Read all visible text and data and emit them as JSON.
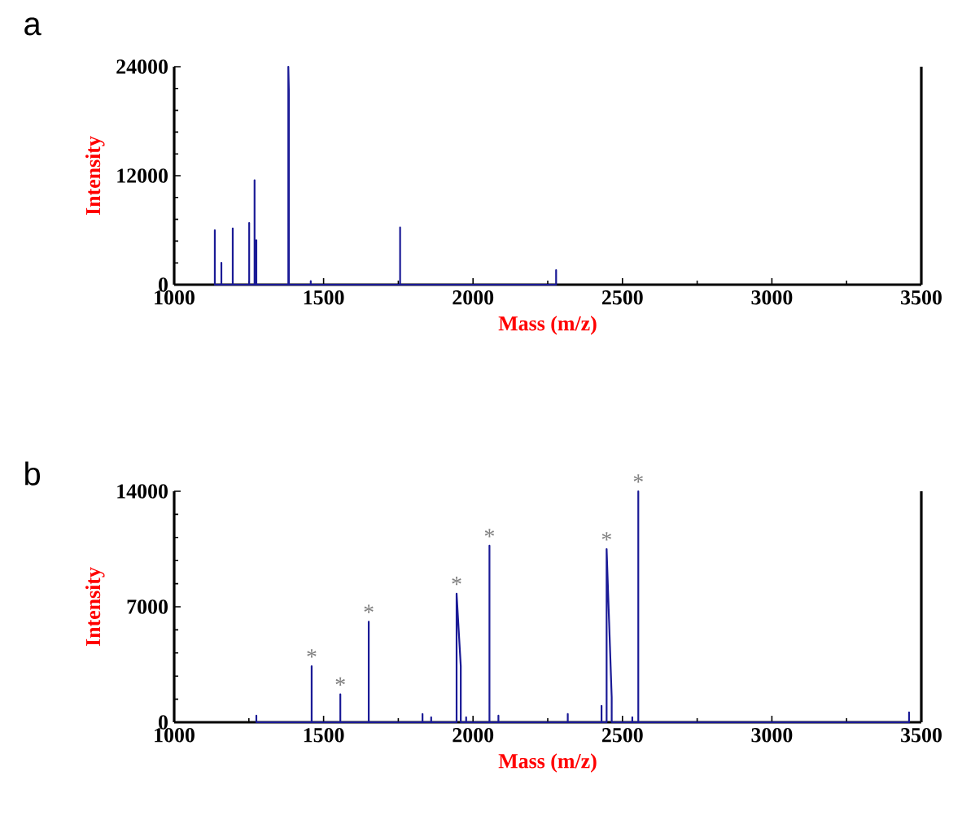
{
  "chart_data": [
    {
      "type": "line",
      "title": "a",
      "xlabel": "Mass (m/z)",
      "ylabel": "Intensity",
      "xlim": [
        1000,
        3500
      ],
      "ylim": [
        0,
        24000
      ],
      "xticks": [
        1000,
        1500,
        2000,
        2500,
        3000,
        3500
      ],
      "yticks": [
        0,
        12000,
        24000
      ],
      "series": [
        {
          "color": "#1a1a96",
          "x": [
            1136,
            1136,
            1136,
            1158,
            1158,
            1158,
            1196,
            1196,
            1196,
            1251,
            1251,
            1251,
            1269,
            1269,
            1269,
            1275,
            1275,
            1275,
            1382,
            1382,
            1384,
            1384,
            1457,
            1457,
            1457,
            1756,
            1756,
            1756,
            2278,
            2278,
            2278
          ],
          "values": [
            0,
            6000,
            0,
            0,
            2400,
            0,
            0,
            6200,
            0,
            0,
            6800,
            0,
            0,
            11500,
            0,
            0,
            4900,
            0,
            0,
            24000,
            21000,
            0,
            0,
            400,
            0,
            0,
            6300,
            0,
            0,
            1600,
            0
          ]
        }
      ]
    },
    {
      "type": "line",
      "title": "b",
      "xlabel": "Mass (m/z)",
      "ylabel": "Intensity",
      "xlim": [
        1000,
        3500
      ],
      "ylim": [
        0,
        14000
      ],
      "xticks": [
        1000,
        1500,
        2000,
        2500,
        3000,
        3500
      ],
      "yticks": [
        0,
        7000,
        14000
      ],
      "series": [
        {
          "color": "#1a1a96",
          "x": [
            1275,
            1275,
            1275,
            1460,
            1460,
            1460,
            1556,
            1556,
            1556,
            1651,
            1651,
            1651,
            1831,
            1831,
            1831,
            1860,
            1860,
            1860,
            1945,
            1945,
            1959,
            1959,
            1977,
            1977,
            1977,
            2055,
            2055,
            2055,
            2085,
            2085,
            2085,
            2317,
            2317,
            2317,
            2430,
            2430,
            2430,
            2447,
            2447,
            2464,
            2464,
            2533,
            2533,
            2533,
            2553,
            2553,
            2553,
            3459,
            3459,
            3459
          ],
          "values": [
            0,
            400,
            0,
            0,
            3400,
            0,
            0,
            1700,
            0,
            0,
            6100,
            0,
            0,
            500,
            0,
            0,
            300,
            0,
            0,
            7800,
            3400,
            0,
            0,
            300,
            0,
            0,
            10700,
            0,
            0,
            400,
            0,
            0,
            500,
            0,
            0,
            1000,
            0,
            0,
            10500,
            1500,
            0,
            0,
            300,
            0,
            0,
            14000,
            0,
            0,
            600,
            0
          ]
        }
      ],
      "annotations": [
        {
          "text": "*",
          "x": 1460,
          "y": 3400
        },
        {
          "text": "*",
          "x": 1556,
          "y": 1700
        },
        {
          "text": "*",
          "x": 1651,
          "y": 6100
        },
        {
          "text": "*",
          "x": 1945,
          "y": 7800
        },
        {
          "text": "*",
          "x": 2055,
          "y": 10700
        },
        {
          "text": "*",
          "x": 2447,
          "y": 10500
        },
        {
          "text": "*",
          "x": 2553,
          "y": 14000
        }
      ]
    }
  ]
}
